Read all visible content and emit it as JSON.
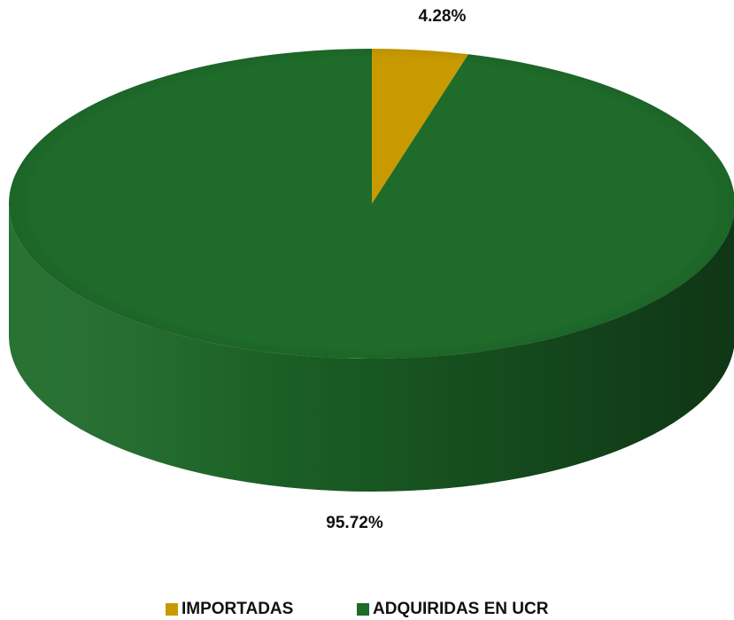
{
  "chart_data": {
    "type": "pie",
    "categories": [
      "IMPORTADAS",
      "ADQUIRIDAS EN UCR"
    ],
    "values": [
      4.28,
      95.72
    ],
    "value_labels": [
      "4.28%",
      "95.72%"
    ],
    "colors": [
      "#c99a00",
      "#1e6b2a"
    ],
    "legend": "bottom"
  }
}
